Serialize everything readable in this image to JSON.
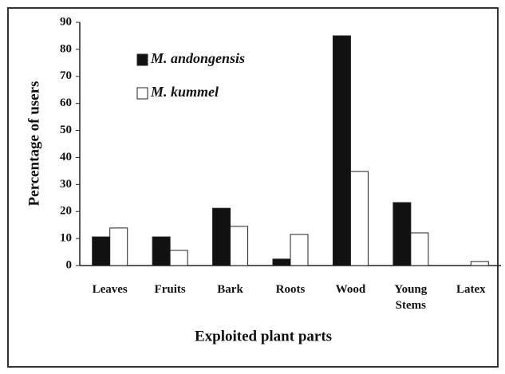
{
  "chart_data": {
    "type": "bar",
    "x_label": "Exploited plant parts",
    "y_label": "Percentage of users",
    "categories": [
      "Leaves",
      "Fruits",
      "Bark",
      "Roots",
      "Wood",
      "Young Stems",
      "Latex"
    ],
    "series": [
      {
        "name": "M. andongensis",
        "color": "#111111",
        "values": [
          10.6,
          10.6,
          21.2,
          2.4,
          85,
          23.3,
          0
        ]
      },
      {
        "name": "M. kummel",
        "color": "#ffffff",
        "values": [
          13.9,
          5.6,
          14.5,
          11.5,
          34.8,
          12.1,
          1.5
        ]
      }
    ],
    "ylim": [
      0,
      90
    ],
    "yticks": [
      0,
      10,
      20,
      30,
      40,
      50,
      60,
      70,
      80,
      90
    ],
    "legend": "upper left",
    "grid": false
  }
}
